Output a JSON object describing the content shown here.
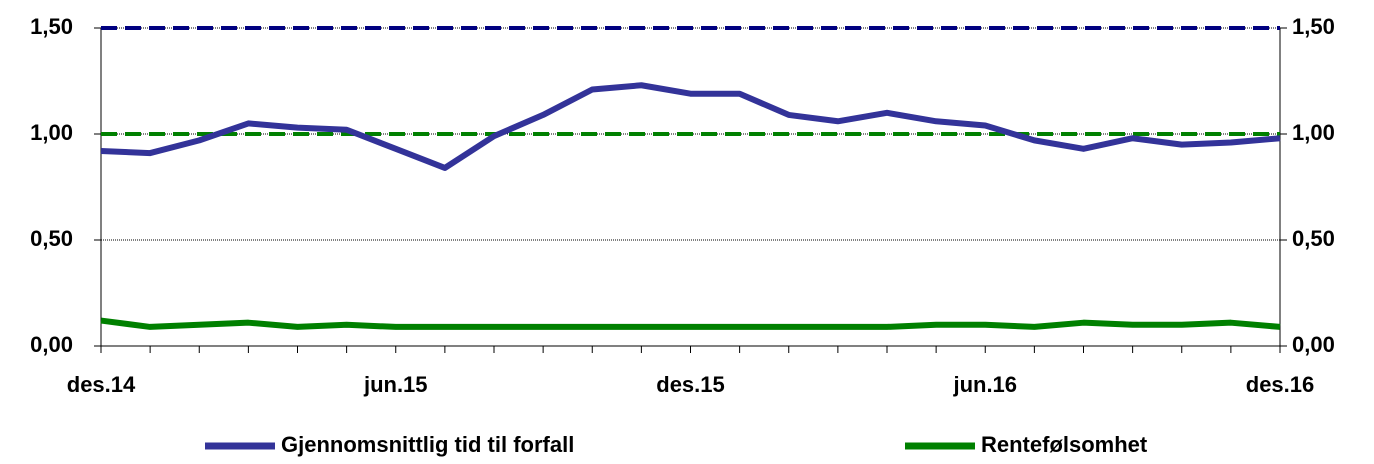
{
  "chart_data": {
    "type": "line",
    "categories": [
      "des.14",
      null,
      null,
      null,
      null,
      null,
      "jun.15",
      null,
      null,
      null,
      null,
      null,
      "des.15",
      null,
      null,
      null,
      null,
      null,
      "jun.16",
      null,
      null,
      null,
      null,
      null,
      "des.16"
    ],
    "series": [
      {
        "name": "Gjennomsnittlig tid til forfall",
        "color": "#333399",
        "values": [
          0.92,
          0.91,
          0.97,
          1.05,
          1.03,
          1.02,
          0.93,
          0.84,
          0.99,
          1.09,
          1.21,
          1.23,
          1.19,
          1.19,
          1.09,
          1.06,
          1.1,
          1.06,
          1.04,
          0.97,
          0.93,
          0.98,
          0.95,
          0.96,
          0.98
        ]
      },
      {
        "name": "Rentefølsomhet",
        "color": "#008000",
        "values": [
          0.12,
          0.09,
          0.1,
          0.11,
          0.09,
          0.1,
          0.09,
          0.09,
          0.09,
          0.09,
          0.09,
          0.09,
          0.09,
          0.09,
          0.09,
          0.09,
          0.09,
          0.1,
          0.1,
          0.09,
          0.11,
          0.1,
          0.1,
          0.11,
          0.09
        ]
      }
    ],
    "reference_lines": [
      {
        "value": 1.5,
        "color": "#000080"
      },
      {
        "value": 1,
        "color": "#008000"
      }
    ],
    "ylim": [
      0,
      1.5
    ],
    "yticks": [
      {
        "value": 0,
        "label": "0,00"
      },
      {
        "value": 0.5,
        "label": "0,50"
      },
      {
        "value": 1,
        "label": "1,00"
      },
      {
        "value": 1.5,
        "label": "1,50"
      }
    ],
    "y2lim": [
      0,
      1.5
    ],
    "y2ticks": [
      {
        "value": 0,
        "label": "0,00"
      },
      {
        "value": 0.5,
        "label": "0,50"
      },
      {
        "value": 1,
        "label": "1,00"
      },
      {
        "value": 1.5,
        "label": "1,50"
      }
    ],
    "grid": true,
    "legend": "bottom"
  }
}
